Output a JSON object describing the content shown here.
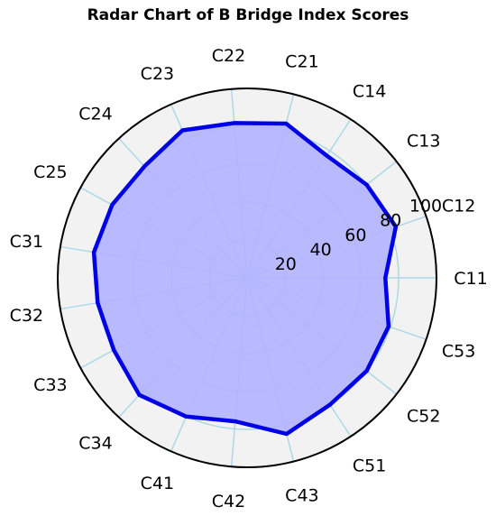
{
  "chart_data": {
    "type": "radar",
    "title": "Radar Chart of B Bridge Index Scores",
    "categories": [
      "C11",
      "C12",
      "C13",
      "C14",
      "C21",
      "C22",
      "C23",
      "C24",
      "C25",
      "C31",
      "C32",
      "C33",
      "C34",
      "C41",
      "C42",
      "C43",
      "C51",
      "C52",
      "C53"
    ],
    "series": [
      {
        "values": [
          73,
          83,
          80,
          77,
          84,
          82,
          85,
          80,
          81,
          82,
          80,
          80,
          84,
          80,
          76,
          85,
          80,
          80,
          79
        ]
      }
    ],
    "rlim": [
      0,
      100
    ],
    "rticks": [
      20,
      40,
      60,
      80,
      100
    ],
    "rtick_labels": [
      "20",
      "40",
      "60",
      "80",
      "100"
    ],
    "grid": true,
    "colors": {
      "line": "#0000e6",
      "fill": "#b3b3ff",
      "grid": "#add8e6",
      "background": "#f2f2f2",
      "frame": "#000000"
    }
  }
}
